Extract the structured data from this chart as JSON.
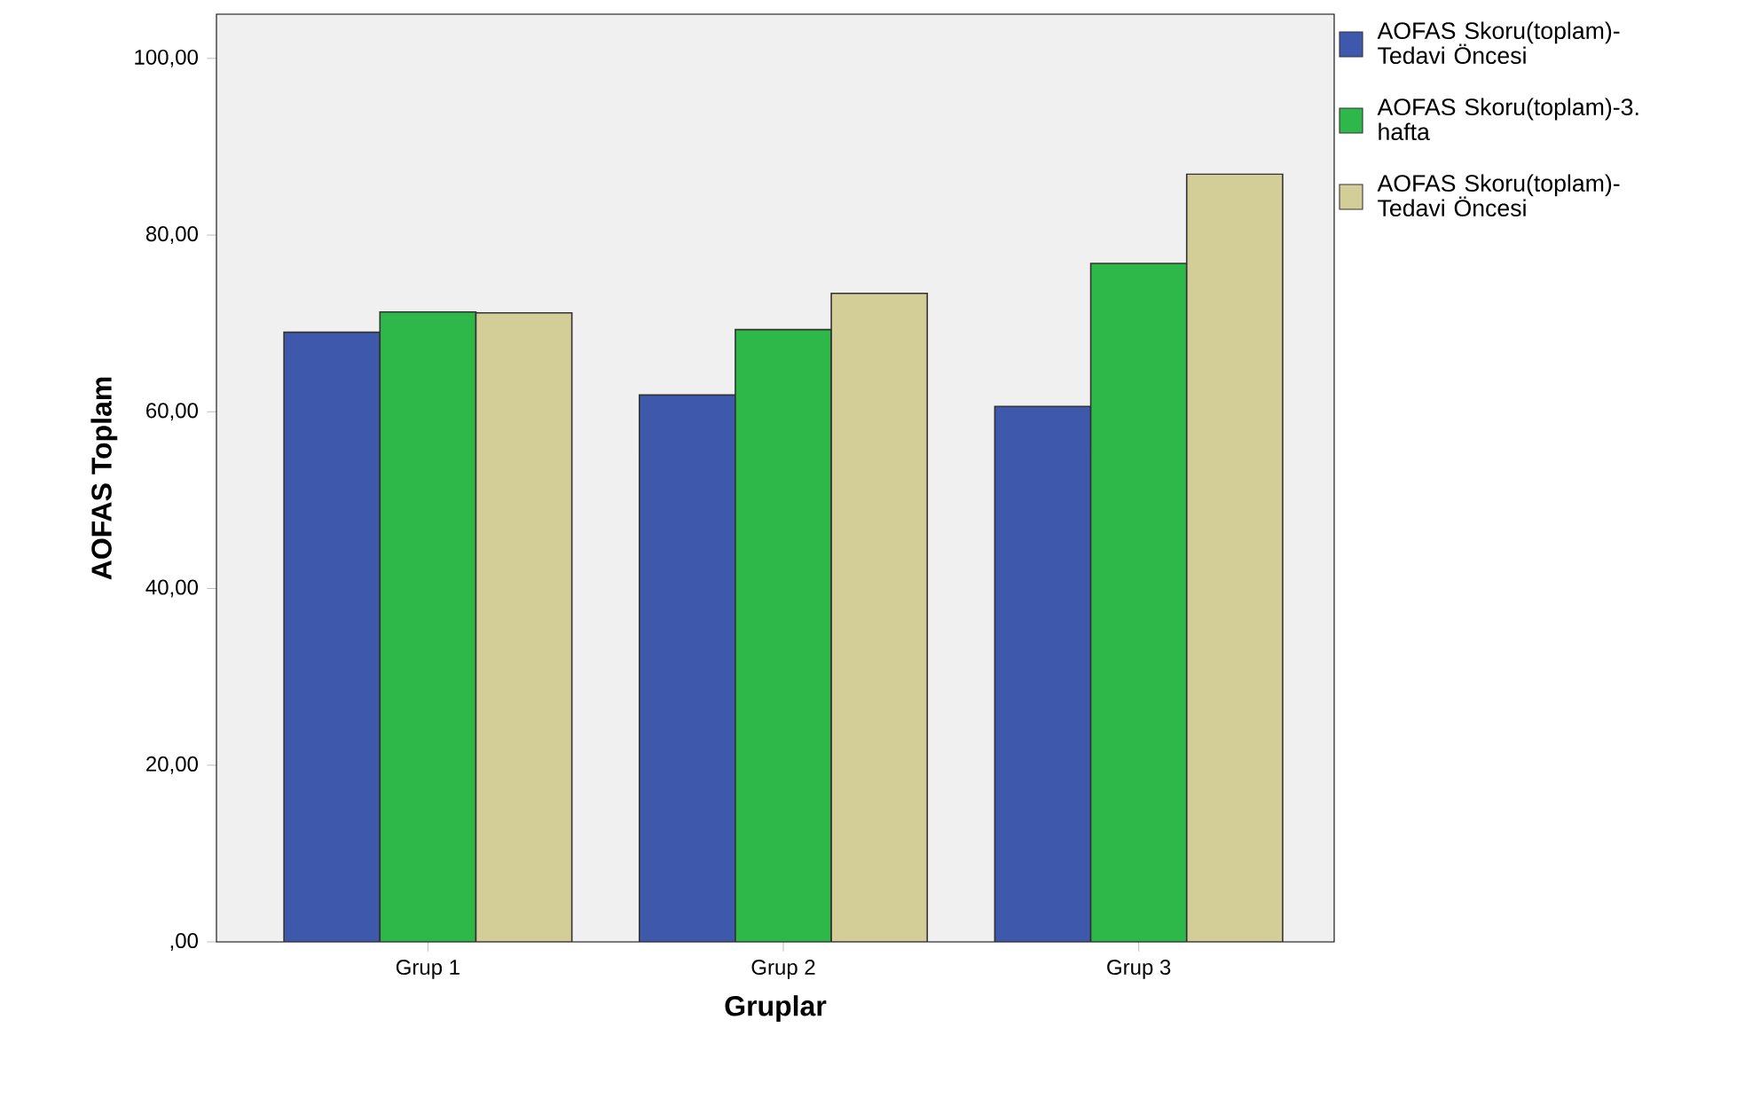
{
  "chart_data": {
    "type": "bar",
    "xlabel": "Gruplar",
    "ylabel": "AOFAS Toplam",
    "categories": [
      "Grup 1",
      "Grup 2",
      "Grup 3"
    ],
    "series": [
      {
        "name": "AOFAS Skoru(toplam)-Tedavi Öncesi",
        "color": "#3e58ac",
        "values": [
          69.0,
          61.9,
          60.6
        ]
      },
      {
        "name": "AOFAS Skoru(toplam)-3. hafta",
        "color": "#2fb84a",
        "values": [
          71.3,
          69.3,
          76.8
        ]
      },
      {
        "name": "AOFAS Skoru(toplam)-Tedavi Öncesi",
        "color": "#d3ce97",
        "values": [
          71.2,
          73.4,
          86.9
        ]
      }
    ],
    "ylim": [
      0,
      105
    ],
    "yticks": [
      {
        "value": 0,
        "label": ",00"
      },
      {
        "value": 20,
        "label": "20,00"
      },
      {
        "value": 40,
        "label": "40,00"
      },
      {
        "value": 60,
        "label": "60,00"
      },
      {
        "value": 80,
        "label": "80,00"
      },
      {
        "value": 100,
        "label": "100,00"
      }
    ],
    "legend": "top right",
    "grid": false
  }
}
